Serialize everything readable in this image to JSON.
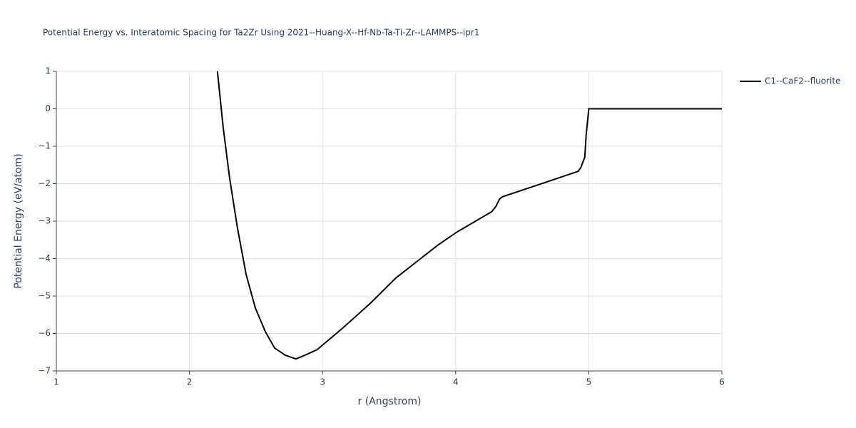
{
  "chart_data": {
    "type": "line",
    "title": "Potential Energy vs. Interatomic Spacing for Ta2Zr Using 2021--Huang-X--Hf-Nb-Ta-Ti-Zr--LAMMPS--ipr1",
    "x_label": "r (Angstrom)",
    "y_label": "Potential Energy (eV/atom)",
    "xlim": [
      1,
      6
    ],
    "xticks": [
      1,
      2,
      3,
      4,
      5,
      6
    ],
    "ylim": [
      -7,
      1
    ],
    "yticks": [
      {
        "value": -7,
        "label": "−7"
      },
      {
        "value": -6,
        "label": "−6"
      },
      {
        "value": -5,
        "label": "−5"
      },
      {
        "value": -4,
        "label": "−4"
      },
      {
        "value": -3,
        "label": "−3"
      },
      {
        "value": -2,
        "label": "−2"
      },
      {
        "value": -1,
        "label": "−1"
      },
      0,
      1
    ],
    "grid": true,
    "legend": "right",
    "series": [
      {
        "name": "C1--CaF2--fluorite",
        "color": "#000000",
        "x": [
          2.21,
          2.254,
          2.302,
          2.361,
          2.426,
          2.495,
          2.57,
          2.64,
          2.72,
          2.8,
          2.88,
          2.96,
          3.05,
          3.15,
          3.36,
          3.55,
          3.74,
          3.87,
          4.01,
          4.27,
          4.3,
          4.33,
          4.35,
          4.57,
          4.92,
          4.94,
          4.97,
          4.98,
          5.0,
          6.0
        ],
        "values": [
          1,
          -0.52,
          -1.86,
          -3.19,
          -4.43,
          -5.32,
          -5.95,
          -6.39,
          -6.58,
          -6.68,
          -6.56,
          -6.43,
          -6.16,
          -5.86,
          -5.19,
          -4.52,
          -3.99,
          -3.63,
          -3.29,
          -2.75,
          -2.62,
          -2.41,
          -2.35,
          -2.09,
          -1.67,
          -1.57,
          -1.29,
          -0.71,
          0,
          0
        ]
      }
    ]
  }
}
